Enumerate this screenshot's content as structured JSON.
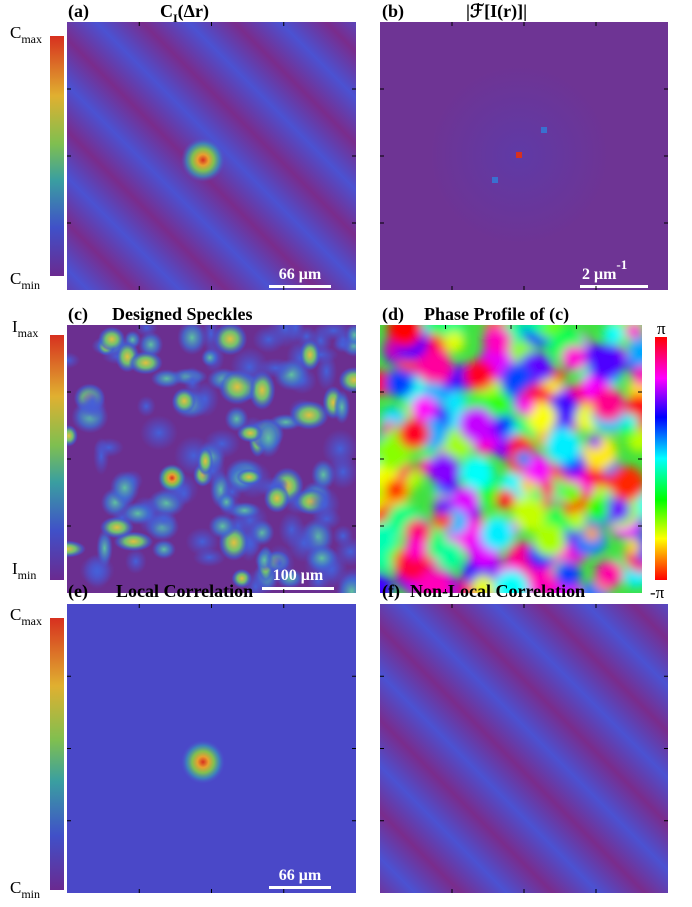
{
  "panels": [
    {
      "label": "(a)",
      "title": {
        "main": "C",
        "sub": "I",
        "rest": "(Δr)"
      },
      "colorbar": {
        "top": {
          "main": "C",
          "sub": "max"
        },
        "bottom": {
          "main": "C",
          "sub": "min"
        }
      },
      "scalebar": {
        "text": "66 μm"
      }
    },
    {
      "label": "(b)",
      "title": {
        "main": "|ℱ[I(r)]|"
      },
      "scalebar": {
        "text": "2 μm",
        "sup": "-1"
      }
    },
    {
      "label": "(c)",
      "title": {
        "main": "Designed Speckles"
      },
      "colorbar": {
        "top": {
          "main": "I",
          "sub": "max"
        },
        "bottom": {
          "main": "I",
          "sub": "min"
        }
      },
      "scalebar": {
        "text": "100 μm"
      }
    },
    {
      "label": "(d)",
      "title": {
        "main": "Phase Profile of (c)"
      },
      "colorbar": {
        "top": {
          "main": "π"
        },
        "bottom": {
          "main": "-π"
        }
      }
    },
    {
      "label": "(e)",
      "title": {
        "main": "Local Correlation"
      },
      "colorbar": {
        "top": {
          "main": "C",
          "sub": "max"
        },
        "bottom": {
          "main": "C",
          "sub": "min"
        }
      },
      "scalebar": {
        "text": "66 μm"
      }
    },
    {
      "label": "(f)",
      "title": {
        "main": "Non-Local Correlation"
      }
    }
  ]
}
